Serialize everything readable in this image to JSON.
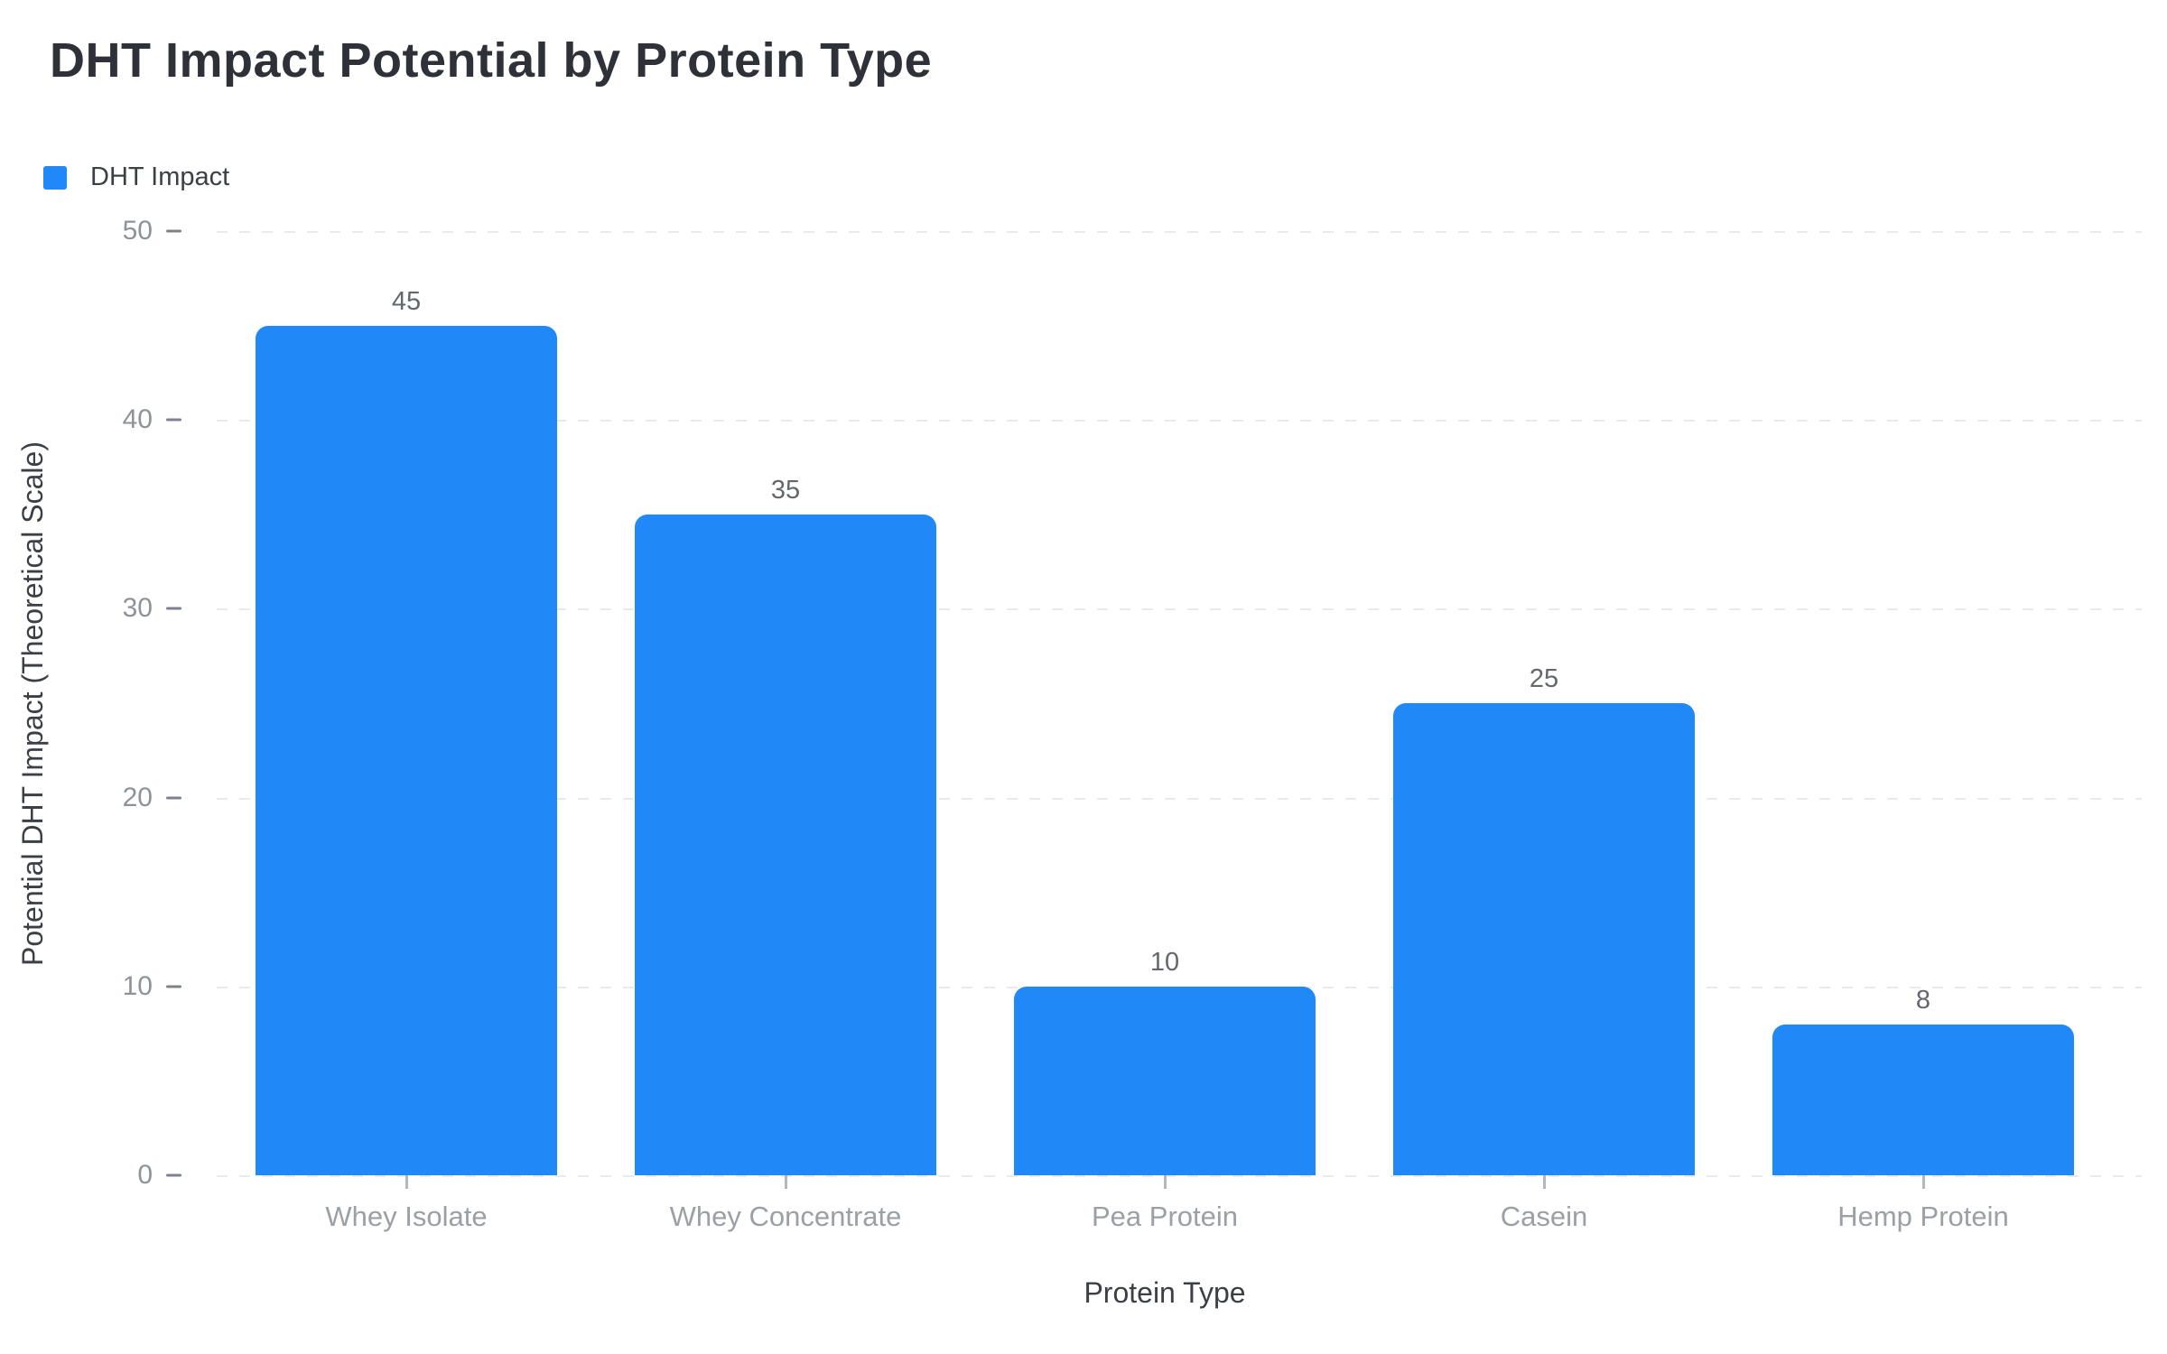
{
  "header": {
    "title": "DHT Impact Potential by Protein Type"
  },
  "legend": {
    "label": "DHT Impact",
    "marker_color": "#2188F7"
  },
  "chart_data": {
    "type": "bar",
    "title": "DHT Impact Potential by Protein Type",
    "series_name": "DHT Impact",
    "categories": [
      "Whey Isolate",
      "Whey Concentrate",
      "Pea Protein",
      "Casein",
      "Hemp Protein"
    ],
    "values": [
      45,
      35,
      10,
      25,
      8
    ],
    "value_labels_shown": true,
    "xlabel": "Protein Type",
    "ylabel": "Potential DHT Impact (Theoretical Scale)",
    "ylim": [
      0,
      50
    ],
    "yticks": [
      0,
      10,
      20,
      30,
      40,
      50
    ],
    "grid": "horizontal-dashed",
    "legend_position": "top-left",
    "bar_color": "#2188F7"
  },
  "colors": {
    "background": "#ffffff",
    "title_text": "#2e3138",
    "axis_title_text": "#3b3f46",
    "ytick_text": "#8d939b",
    "category_text": "#9aa0a6",
    "value_label_text": "#64686d",
    "gridline": "#e8eaed",
    "bar": "#2188F7"
  }
}
